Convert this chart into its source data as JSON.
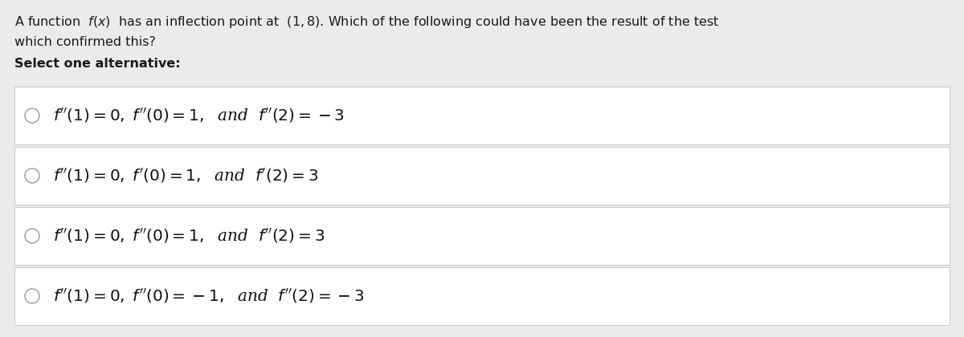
{
  "background_color": "#ebebeb",
  "box_color": "#ffffff",
  "box_border_color": "#c8c8c8",
  "question_line1": "A function  $f(x)$  has an inflection point at  $(1, 8)$. Which of the following could have been the result of the test",
  "question_line2": "which confirmed this?",
  "select_text": "Select one alternative:",
  "option_texts": [
    "$f''(1) = 0,\\, f''(0) = 1,$\\quad and\\quad $f''(2) = -3$",
    "$f''(1) = 0,\\, f'(0) = 1,$\\quad and\\quad $f'(2) = 3$",
    "$f''(1) = 0,\\, f''(0) = 1,$\\quad and\\quad $f''(2) = 3$",
    "$f''(1) = 0,\\, f''(0) = -1,$\\quad and\\quad $f''(2) = -3$"
  ],
  "fig_width": 12.0,
  "fig_height": 4.2,
  "dpi": 100
}
